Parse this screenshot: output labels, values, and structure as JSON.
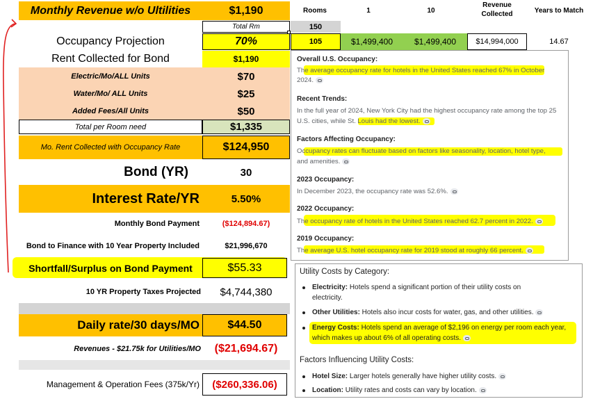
{
  "left_table": {
    "monthly_revenue_label": "Monthly Revenue w/o Ultilities",
    "monthly_revenue_value": "$1,190",
    "total_rm_label": "Total Rm",
    "occupancy_label": "Occupancy Projection",
    "occupancy_value": "70%",
    "rent_bond_label": "Rent Collected for Bond",
    "rent_bond_value": "$1,190",
    "electric_label": "Electric/Mo/ALL Units",
    "electric_value": "$70",
    "water_label": "Water/Mo/ ALL Units",
    "water_value": "$25",
    "fees_label": "Added Fees/All Units",
    "fees_value": "$50",
    "total_room_label": "Total per Room need",
    "total_room_value": "$1,335",
    "mo_rent_label": "Mo. Rent Collected with Occupancy Rate",
    "mo_rent_value": "$124,950",
    "bond_label": "Bond (YR)",
    "bond_value": "30",
    "interest_label": "Interest Rate/YR",
    "interest_value": "5.50%",
    "monthly_payment_label": "Monthly Bond Payment",
    "monthly_payment_value": "($124,894.67)",
    "finance_label": "Bond to Finance with 10 Year Property Included",
    "finance_value": "$21,996,670",
    "shortfall_label": "Shortfall/Surplus on Bond Payment",
    "shortfall_value": "$55.33",
    "taxes_label": "10 YR Property Taxes Projected",
    "taxes_value": "$4,744,380",
    "daily_label": "Daily rate/30 days/MO",
    "daily_value": "$44.50",
    "revenues_label": "Revenues - $21.75k for Utilities/MO",
    "revenues_value": "($21,694.67)",
    "mgmt_label": "Management & Operation Fees (375k/Yr)",
    "mgmt_value": "($260,336.06)"
  },
  "right_table": {
    "headers": {
      "rooms": "Rooms",
      "one": "1",
      "ten": "10",
      "revenue_collected": "Revenue Collected",
      "years_to_match": "Years to Match"
    },
    "total_rooms": "150",
    "occupied_rooms": "105",
    "rev_1": "$1,499,400",
    "rev_10": "$1,499,400",
    "revenue_collected": "$14,994,000",
    "years": "14.67"
  },
  "occupancy_panel": {
    "sections": [
      {
        "heading": "Overall U.S. Occupancy:",
        "lines": [
          "The average occupancy rate for hotels in the United States reached 67% in October",
          "2024."
        ]
      },
      {
        "heading": "Recent Trends:",
        "lines": [
          "In the full year of 2024, New York City had the highest occupancy rate among the top 25",
          "U.S. cities, while St. Louis had the lowest."
        ]
      },
      {
        "heading": "Factors Affecting Occupancy:",
        "lines": [
          "Occupancy rates can fluctuate based on factors like seasonality, location, hotel type,",
          "and amenities."
        ]
      },
      {
        "heading": "2023 Occupancy:",
        "lines": [
          "In December 2023, the occupancy rate was 52.6%."
        ]
      },
      {
        "heading": "2022 Occupancy:",
        "lines": [
          "The occupancy rate of hotels in the United States reached 62.7 percent in 2022."
        ]
      },
      {
        "heading": "2019 Occupancy:",
        "lines": [
          "The average U.S. hotel occupancy rate for 2019 stood at roughly 66 percent."
        ]
      }
    ]
  },
  "utility_panel": {
    "title": "Utility Costs by Category:",
    "items": [
      {
        "term": "Electricity:",
        "text": " Hotels spend a significant portion of their utility costs on",
        "cont": "electricity."
      },
      {
        "term": "Other Utilities:",
        "text": " Hotels also incur costs for water, gas, and other utilities."
      },
      {
        "term": "Energy Costs:",
        "text": " Hotels spend an average of $2,196 on energy per room each year,",
        "cont": "which makes up about 6% of all operating costs."
      }
    ],
    "factors_title": "Factors Influencing Utility Costs:",
    "factors": [
      {
        "term": "Hotel Size:",
        "text": " Larger hotels generally have higher utility costs."
      },
      {
        "term": "Location:",
        "text": " Utility rates and costs can vary by location."
      }
    ]
  },
  "colors": {
    "orange": "#ffc000",
    "peach": "#fbd4b4",
    "yellow": "#ffff00",
    "green": "#92d050",
    "red": "#e00000"
  }
}
